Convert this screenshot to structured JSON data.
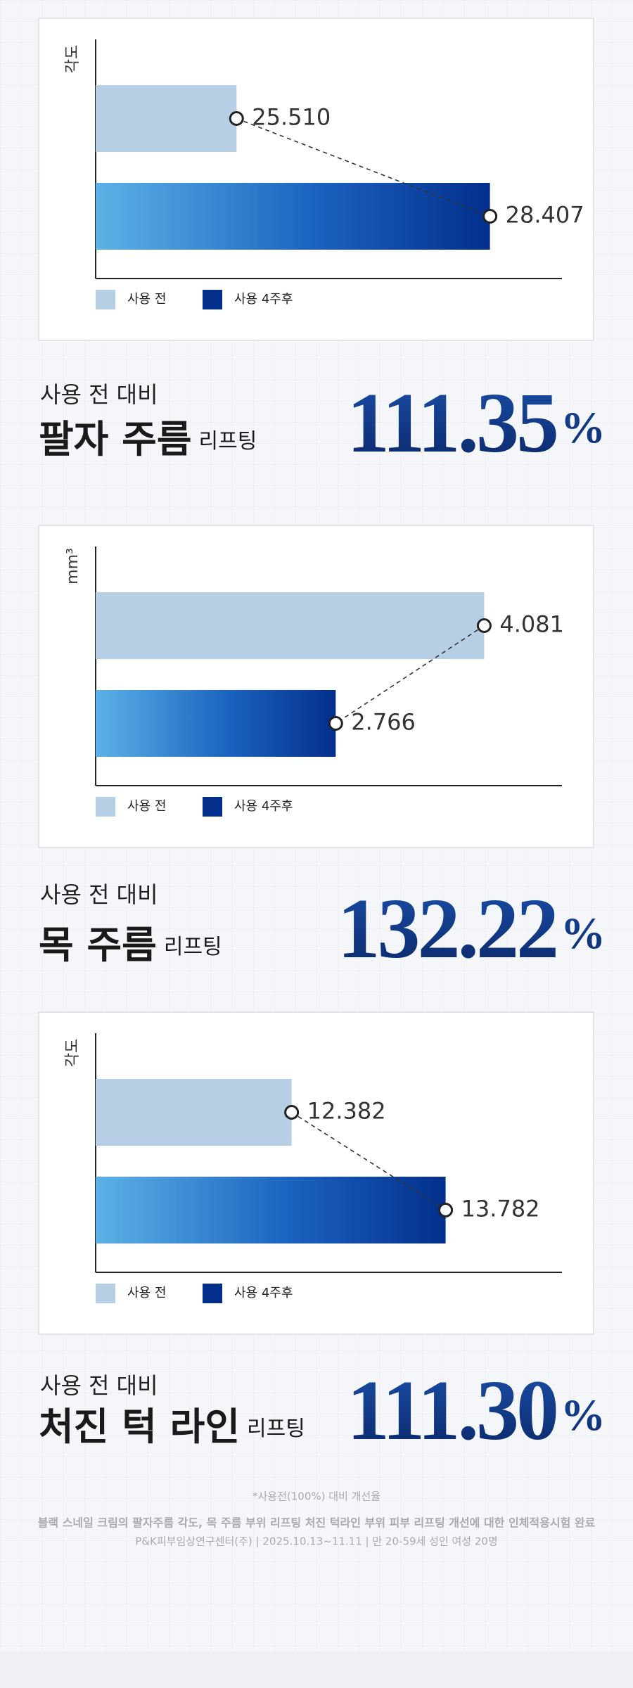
{
  "chart_data": [
    {
      "type": "bar",
      "orientation": "horizontal",
      "y_label": "각도",
      "xlim": [
        23.9,
        29.23
      ],
      "series": [
        {
          "name": "사용 전",
          "color": "#b7cfe4",
          "values": [
            25.51
          ],
          "value_labels": [
            "25.510"
          ]
        },
        {
          "name": "사용 4주후",
          "color": "#032f8c",
          "values": [
            28.407
          ]
        }
      ]
    },
    {
      "type": "bar",
      "orientation": "horizontal",
      "y_label": "mm³",
      "xlim": [
        0.64,
        4.77
      ],
      "series": [
        {
          "name": "사용 전",
          "color": "#b7cfe4",
          "values": [
            4.081
          ]
        },
        {
          "name": "사용 4주후",
          "color": "#032f8c",
          "values": [
            2.766
          ]
        }
      ]
    },
    {
      "type": "bar",
      "orientation": "horizontal",
      "y_label": "각도",
      "xlim": [
        10.6,
        14.84
      ],
      "series": [
        {
          "name": "사용 전",
          "color": "#b7cfe4",
          "values": [
            12.382
          ]
        },
        {
          "name": "사용 4주후",
          "color": "#032f8c",
          "values": [
            13.782
          ]
        }
      ]
    }
  ],
  "sections": [
    {
      "lead": "사용 전 대비",
      "headline": "팔자 주름",
      "suffix": "리프팅",
      "percent": "111.35",
      "percent_unit": "%"
    },
    {
      "lead": "사용 전 대비",
      "headline": "목 주름",
      "suffix": "리프팅",
      "percent": "132.22",
      "percent_unit": "%"
    },
    {
      "lead": "사용 전 대비",
      "headline": "처진 턱 라인",
      "suffix": "리프팅",
      "percent": "111.30",
      "percent_unit": "%"
    }
  ],
  "footnotes": [
    "*사용전(100%) 대비 개선율",
    "블랙 스네일 크림의 팔자주름 각도, 목 주름 부위  리프팅  처진 턱라인 부위 피부 리프팅 개선에 대한 인체적용시험 완료",
    "P&K피부임상연구센터(주) | 2025.10.13~11.11 | 만 20-59세 성인 여성 20명"
  ]
}
